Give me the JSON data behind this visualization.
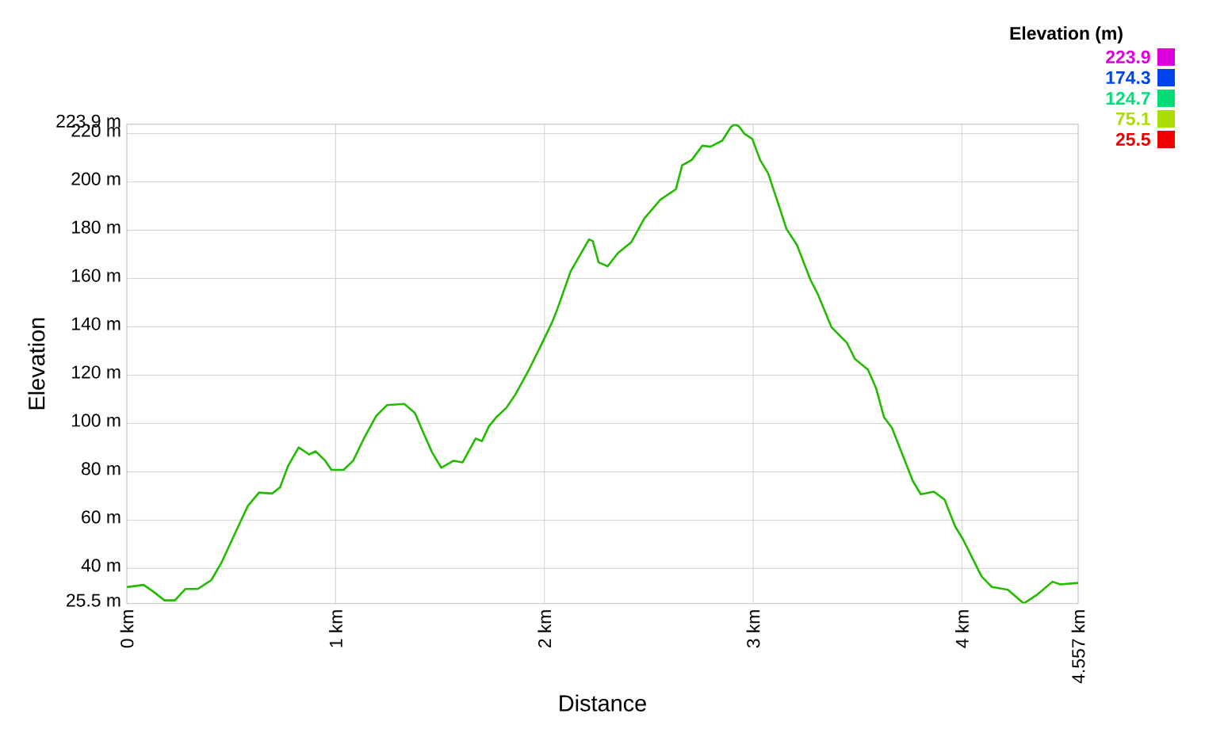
{
  "chart_data": {
    "type": "line",
    "xlabel": "Distance",
    "ylabel": "Elevation",
    "clabel": "Elevation (m)",
    "x": [
      0,
      0.08,
      0.127,
      0.18,
      0.23,
      0.28,
      0.34,
      0.405,
      0.456,
      0.52,
      0.58,
      0.633,
      0.696,
      0.734,
      0.772,
      0.823,
      0.873,
      0.904,
      0.95,
      0.98,
      1.038,
      1.084,
      1.139,
      1.195,
      1.246,
      1.329,
      1.38,
      1.418,
      1.463,
      1.506,
      1.565,
      1.608,
      1.671,
      1.701,
      1.734,
      1.772,
      1.818,
      1.861,
      1.924,
      1.987,
      2.038,
      2.063,
      2.126,
      2.214,
      2.232,
      2.26,
      2.303,
      2.353,
      2.416,
      2.479,
      2.555,
      2.63,
      2.66,
      2.706,
      2.756,
      2.795,
      2.852,
      2.895,
      2.914,
      2.933,
      2.958,
      2.996,
      3.034,
      3.072,
      3.11,
      3.16,
      3.21,
      3.274,
      3.31,
      3.375,
      3.45,
      3.488,
      3.55,
      3.589,
      3.627,
      3.665,
      3.715,
      3.765,
      3.803,
      3.866,
      3.917,
      3.967,
      4.005,
      4.056,
      4.094,
      4.144,
      4.22,
      4.296,
      4.358,
      4.434,
      4.472,
      4.557
    ],
    "values": [
      32.3,
      33.2,
      30.4,
      26.8,
      26.8,
      31.5,
      31.5,
      35.2,
      42.9,
      54.9,
      65.9,
      71.4,
      71.0,
      73.6,
      82.4,
      90.1,
      87.2,
      88.5,
      84.6,
      80.8,
      80.8,
      84.6,
      94.4,
      103.2,
      107.6,
      108.1,
      104.3,
      96.6,
      87.9,
      81.7,
      84.6,
      83.9,
      93.8,
      92.7,
      98.8,
      102.8,
      106.5,
      112.0,
      121.9,
      132.9,
      142.1,
      147.6,
      163.0,
      176.2,
      175.5,
      166.7,
      165.1,
      170.6,
      175.0,
      184.9,
      192.6,
      197.0,
      206.9,
      209.1,
      215.0,
      214.6,
      217.1,
      222.9,
      223.9,
      222.9,
      220.0,
      217.8,
      209.0,
      203.5,
      193.7,
      180.5,
      173.9,
      159.6,
      153.5,
      139.9,
      133.3,
      126.7,
      122.3,
      114.6,
      102.6,
      98.2,
      87.2,
      76.2,
      70.7,
      71.8,
      68.5,
      57.5,
      52.1,
      43.3,
      36.7,
      32.3,
      31.2,
      25.5,
      29.0,
      34.5,
      33.4,
      34.0
    ],
    "xlim": [
      0,
      4.557
    ],
    "ylim": [
      25.5,
      223.9
    ],
    "xticks": [
      {
        "value": 0,
        "label": "0 km"
      },
      {
        "value": 1,
        "label": "1 km"
      },
      {
        "value": 2,
        "label": "2 km"
      },
      {
        "value": 3,
        "label": "3 km"
      },
      {
        "value": 4,
        "label": "4 km"
      },
      {
        "value": 4.557,
        "label": "4.557 km"
      }
    ],
    "yticks": [
      {
        "value": 25.5,
        "label": "25.5 m"
      },
      {
        "value": 40,
        "label": "40 m"
      },
      {
        "value": 60,
        "label": "60 m"
      },
      {
        "value": 80,
        "label": "80 m"
      },
      {
        "value": 100,
        "label": "100 m"
      },
      {
        "value": 120,
        "label": "120 m"
      },
      {
        "value": 140,
        "label": "140 m"
      },
      {
        "value": 160,
        "label": "160 m"
      },
      {
        "value": 180,
        "label": "180 m"
      },
      {
        "value": 200,
        "label": "200 m"
      },
      {
        "value": 220,
        "label": "220 m"
      },
      {
        "value": 223.9,
        "label": "223.9 m"
      }
    ],
    "clim": [
      25.5,
      223.9
    ],
    "cticks": [
      223.9,
      174.3,
      124.7,
      75.1,
      25.5
    ],
    "color": "#22bb00",
    "grid": true
  }
}
